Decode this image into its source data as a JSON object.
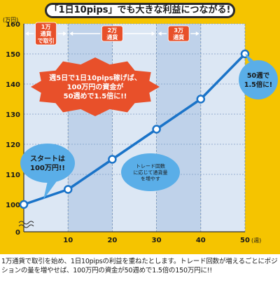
{
  "title": "「1日10pips」でも大きな利益につながる!",
  "caption": "1万通貨で取引を始め、1日10pipsの利益を重ねたとします。トレード回数が増えるごとにポジションの量を増やせば、100万円の資金が50週めで1.5倍の150万円に!!",
  "colors": {
    "frame": "#f5c400",
    "series": "#1a73c8",
    "band_a": "#dce7f4",
    "band_b": "#bfd2ea",
    "phase_label": "#e8502a",
    "callout_red": "#e8502a",
    "callout_blue": "#5aaee8"
  },
  "chart_data": {
    "type": "line",
    "y_unit_label": "(万円)",
    "x_unit_label": "(週)",
    "ylim": [
      100,
      160
    ],
    "y_ticks": [
      100,
      110,
      120,
      130,
      140,
      150,
      160
    ],
    "y_axis_break": true,
    "xlim": [
      0,
      50
    ],
    "x_ticks": [
      0,
      10,
      20,
      30,
      40,
      50
    ],
    "grid": true,
    "series": [
      {
        "x": [
          0,
          10,
          20,
          30,
          40,
          50
        ],
        "values": [
          100,
          105,
          115,
          125,
          135,
          150
        ]
      }
    ],
    "phases": [
      {
        "label": "1万\n通貨\nで取引",
        "from": 0,
        "to": 10
      },
      {
        "label": "2万\n通貨",
        "from": 10,
        "to": 30
      },
      {
        "label": "3万\n通貨",
        "from": 30,
        "to": 40
      }
    ],
    "annotations": [
      {
        "text": "週5日で1日10pips稼げば、\n100万円の資金が\n50週めで1.5倍に!!",
        "style": "red-burst"
      },
      {
        "text": "スタートは\n100万円!!",
        "style": "blue-bubble"
      },
      {
        "text": "トレード回数\nに応じて通貨量\nを増やす",
        "style": "blue-bubble-small"
      },
      {
        "text": "50週で\n1.5倍に!",
        "style": "blue-bubble"
      }
    ]
  }
}
